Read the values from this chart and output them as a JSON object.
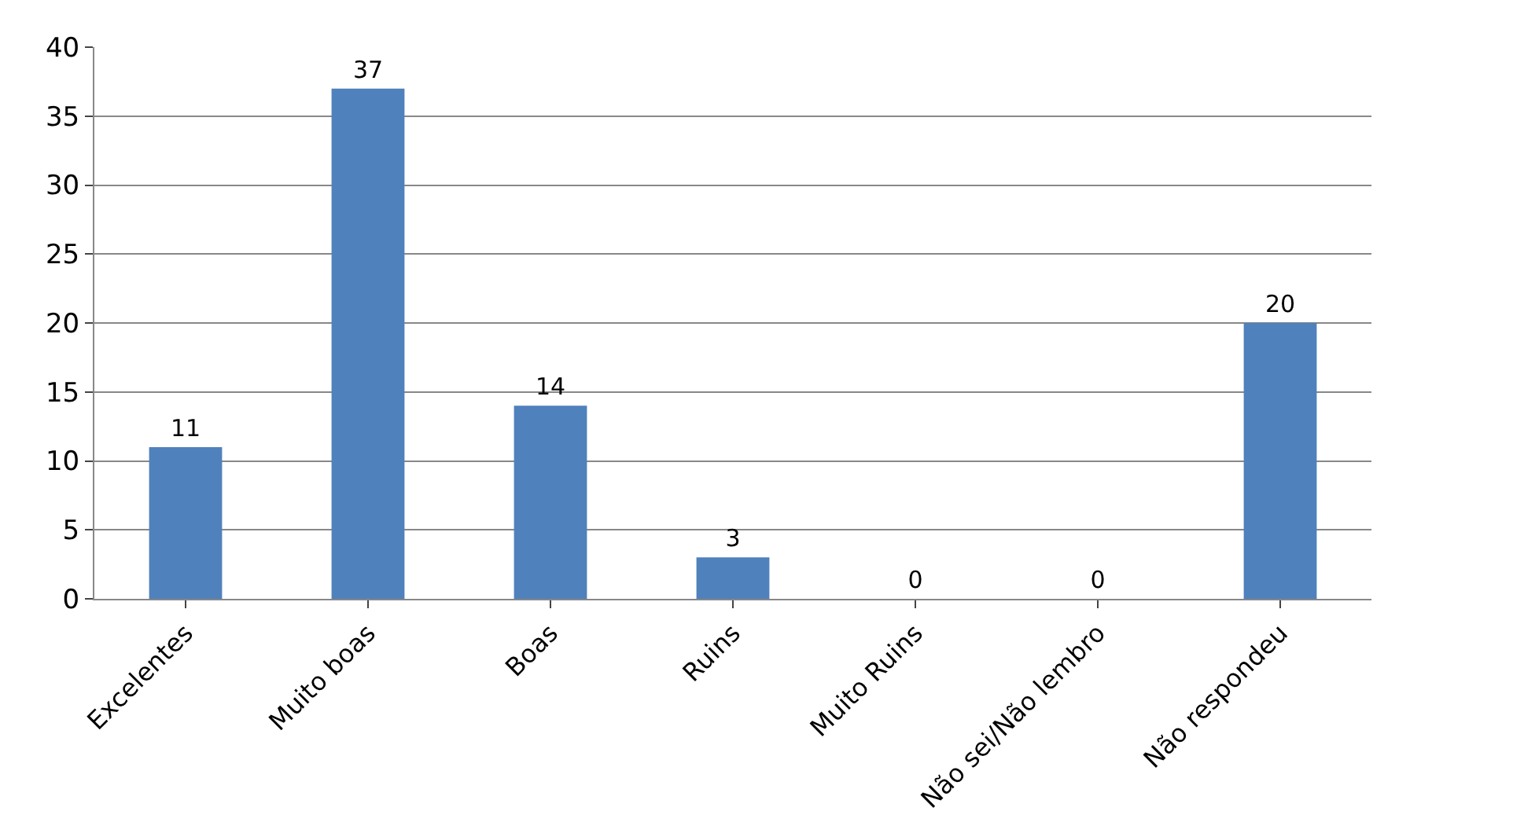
{
  "chart_data": {
    "type": "bar",
    "categories": [
      "Excelentes",
      "Muito boas",
      "Boas",
      "Ruins",
      "Muito Ruins",
      "Não sei/Não lembro",
      "Não respondeu"
    ],
    "values": [
      11,
      37,
      14,
      3,
      0,
      0,
      20
    ],
    "color": "#4f81bd",
    "ylim": [
      0,
      40
    ],
    "yticks": [
      0,
      5,
      10,
      15,
      20,
      25,
      30,
      35,
      40
    ],
    "grid": "y",
    "data_labels": true
  }
}
